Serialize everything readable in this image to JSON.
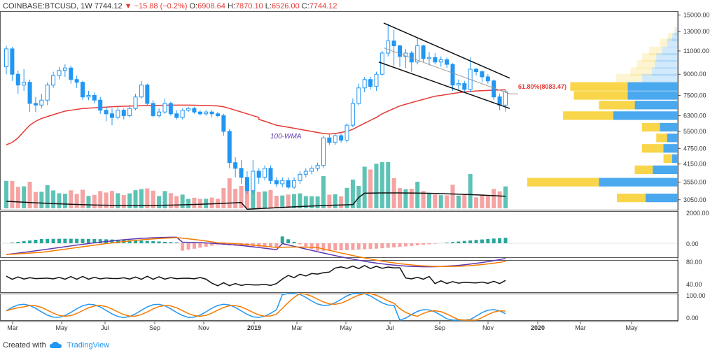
{
  "header": {
    "symbol": "COINBASE:BTCUSD, 1W",
    "last": "7744.12",
    "change": "▼ −15.88 (−0.2%)",
    "o_label": "O:",
    "o_val": "6908.64",
    "h_label": "H:",
    "h_val": "7870.10",
    "l_label": "L:",
    "l_val": "6526.00",
    "c_label": "C:",
    "c_val": "7744.12"
  },
  "footer": {
    "created": "Created with",
    "brand": "TradingView"
  },
  "colors": {
    "up": "#2196f3",
    "down": "#2196f3",
    "wma": "#e53935",
    "fib": "#e53935",
    "vol_up": "#5cc3b5",
    "vol_down": "#f5a3a3",
    "vp_yellow": "#f9d54a",
    "vp_blue": "#4aa8ef"
  },
  "chart_data": {
    "type": "candlestick",
    "title": "COINBASE:BTCUSD, 1W",
    "price_axis_ticks": [
      "15000.00",
      "13000.00",
      "11000.00",
      "9000.00",
      "7500.00",
      "6300.00",
      "5500.00",
      "4750.00",
      "4150.00",
      "3550.00",
      "3050.00"
    ],
    "x_axis_ticks": [
      "Mar",
      "May",
      "Jul",
      "Sep",
      "Nov",
      "2019",
      "Mar",
      "May",
      "Jul",
      "Sep",
      "Nov",
      "2020",
      "Mar",
      "May"
    ],
    "annotations": {
      "wma_label": "100-WMA",
      "fib_label": "61.80%(8083.47)"
    },
    "candles": [
      {
        "o": 9600,
        "c": 11200,
        "h": 11500,
        "l": 9000
      },
      {
        "o": 11200,
        "c": 9000,
        "h": 11400,
        "l": 8500
      },
      {
        "o": 9000,
        "c": 8200,
        "h": 9300,
        "l": 7600
      },
      {
        "o": 8200,
        "c": 8400,
        "h": 9400,
        "l": 7800
      },
      {
        "o": 8400,
        "c": 7000,
        "h": 8600,
        "l": 6500
      },
      {
        "o": 7000,
        "c": 6900,
        "h": 7400,
        "l": 6500
      },
      {
        "o": 6900,
        "c": 7200,
        "h": 7600,
        "l": 6700
      },
      {
        "o": 7200,
        "c": 8200,
        "h": 8400,
        "l": 6900
      },
      {
        "o": 8200,
        "c": 8900,
        "h": 9200,
        "l": 8000
      },
      {
        "o": 8900,
        "c": 9300,
        "h": 9600,
        "l": 8600
      },
      {
        "o": 9300,
        "c": 9500,
        "h": 9800,
        "l": 8800
      },
      {
        "o": 9500,
        "c": 8600,
        "h": 9700,
        "l": 8300
      },
      {
        "o": 8600,
        "c": 8400,
        "h": 8900,
        "l": 8000
      },
      {
        "o": 8400,
        "c": 7400,
        "h": 8500,
        "l": 7200
      },
      {
        "o": 7400,
        "c": 7500,
        "h": 7800,
        "l": 7200
      },
      {
        "o": 7500,
        "c": 7200,
        "h": 7700,
        "l": 7000
      },
      {
        "o": 7200,
        "c": 6600,
        "h": 7400,
        "l": 6400
      },
      {
        "o": 6600,
        "c": 6400,
        "h": 6800,
        "l": 6000
      },
      {
        "o": 6400,
        "c": 6200,
        "h": 6700,
        "l": 5800
      },
      {
        "o": 6200,
        "c": 6600,
        "h": 6800,
        "l": 6100
      },
      {
        "o": 6600,
        "c": 6300,
        "h": 6700,
        "l": 6100
      },
      {
        "o": 6300,
        "c": 6700,
        "h": 6900,
        "l": 6200
      },
      {
        "o": 6700,
        "c": 7400,
        "h": 7600,
        "l": 6600
      },
      {
        "o": 7400,
        "c": 8200,
        "h": 8500,
        "l": 7300
      },
      {
        "o": 8200,
        "c": 7000,
        "h": 8300,
        "l": 6900
      },
      {
        "o": 7000,
        "c": 6300,
        "h": 7200,
        "l": 6200
      },
      {
        "o": 6300,
        "c": 6500,
        "h": 6700,
        "l": 6200
      },
      {
        "o": 6500,
        "c": 7000,
        "h": 7300,
        "l": 6400
      },
      {
        "o": 7000,
        "c": 6400,
        "h": 7100,
        "l": 6300
      },
      {
        "o": 6400,
        "c": 6200,
        "h": 6600,
        "l": 6100
      },
      {
        "o": 6200,
        "c": 6600,
        "h": 6700,
        "l": 6100
      },
      {
        "o": 6600,
        "c": 6700,
        "h": 6800,
        "l": 6500
      },
      {
        "o": 6700,
        "c": 6500,
        "h": 6800,
        "l": 6400
      },
      {
        "o": 6500,
        "c": 6400,
        "h": 6600,
        "l": 6300
      },
      {
        "o": 6400,
        "c": 6500,
        "h": 6600,
        "l": 6300
      },
      {
        "o": 6500,
        "c": 6400,
        "h": 6600,
        "l": 6200
      },
      {
        "o": 6400,
        "c": 6300,
        "h": 6500,
        "l": 6200
      },
      {
        "o": 6300,
        "c": 5500,
        "h": 6400,
        "l": 5300
      },
      {
        "o": 5500,
        "c": 4200,
        "h": 5600,
        "l": 4000
      },
      {
        "o": 4200,
        "c": 4000,
        "h": 4400,
        "l": 3700
      },
      {
        "o": 4000,
        "c": 3700,
        "h": 4300,
        "l": 3500
      },
      {
        "o": 3700,
        "c": 3300,
        "h": 3900,
        "l": 3200
      },
      {
        "o": 3300,
        "c": 3900,
        "h": 4300,
        "l": 3200
      },
      {
        "o": 3900,
        "c": 3700,
        "h": 4000,
        "l": 3500
      },
      {
        "o": 3700,
        "c": 4000,
        "h": 4100,
        "l": 3600
      },
      {
        "o": 4000,
        "c": 3600,
        "h": 4100,
        "l": 3500
      },
      {
        "o": 3600,
        "c": 3500,
        "h": 3700,
        "l": 3400
      },
      {
        "o": 3500,
        "c": 3600,
        "h": 3700,
        "l": 3400
      },
      {
        "o": 3600,
        "c": 3400,
        "h": 3700,
        "l": 3350
      },
      {
        "o": 3400,
        "c": 3600,
        "h": 3700,
        "l": 3350
      },
      {
        "o": 3600,
        "c": 3800,
        "h": 3900,
        "l": 3500
      },
      {
        "o": 3800,
        "c": 3900,
        "h": 4000,
        "l": 3700
      },
      {
        "o": 3900,
        "c": 4000,
        "h": 4100,
        "l": 3800
      },
      {
        "o": 4000,
        "c": 4100,
        "h": 4200,
        "l": 3900
      },
      {
        "o": 4100,
        "c": 5200,
        "h": 5300,
        "l": 4000
      },
      {
        "o": 5200,
        "c": 5000,
        "h": 5400,
        "l": 4900
      },
      {
        "o": 5000,
        "c": 5300,
        "h": 5400,
        "l": 4900
      },
      {
        "o": 5300,
        "c": 5100,
        "h": 5400,
        "l": 5000
      },
      {
        "o": 5100,
        "c": 5800,
        "h": 5900,
        "l": 5000
      },
      {
        "o": 5800,
        "c": 7000,
        "h": 7300,
        "l": 5700
      },
      {
        "o": 7000,
        "c": 8000,
        "h": 8300,
        "l": 6900
      },
      {
        "o": 8000,
        "c": 8600,
        "h": 8800,
        "l": 7700
      },
      {
        "o": 8600,
        "c": 8100,
        "h": 8800,
        "l": 7900
      },
      {
        "o": 8100,
        "c": 9000,
        "h": 9200,
        "l": 7800
      },
      {
        "o": 9000,
        "c": 10800,
        "h": 11000,
        "l": 8900
      },
      {
        "o": 10800,
        "c": 12000,
        "h": 13900,
        "l": 10500
      },
      {
        "o": 12000,
        "c": 11500,
        "h": 13200,
        "l": 9700
      },
      {
        "o": 11500,
        "c": 10500,
        "h": 11600,
        "l": 9600
      },
      {
        "o": 10500,
        "c": 10800,
        "h": 11200,
        "l": 9500
      },
      {
        "o": 10800,
        "c": 10000,
        "h": 11000,
        "l": 9200
      },
      {
        "o": 10000,
        "c": 11500,
        "h": 12300,
        "l": 9800
      },
      {
        "o": 11500,
        "c": 10300,
        "h": 11600,
        "l": 10000
      },
      {
        "o": 10300,
        "c": 10400,
        "h": 10900,
        "l": 9700
      },
      {
        "o": 10400,
        "c": 10000,
        "h": 10800,
        "l": 9800
      },
      {
        "o": 10000,
        "c": 10200,
        "h": 10500,
        "l": 9600
      },
      {
        "o": 10200,
        "c": 9800,
        "h": 10400,
        "l": 9500
      },
      {
        "o": 9800,
        "c": 8200,
        "h": 9900,
        "l": 7800
      },
      {
        "o": 8200,
        "c": 8300,
        "h": 8600,
        "l": 7900
      },
      {
        "o": 8300,
        "c": 7900,
        "h": 8500,
        "l": 7700
      },
      {
        "o": 7900,
        "c": 9400,
        "h": 10400,
        "l": 7700
      },
      {
        "o": 9400,
        "c": 9200,
        "h": 9500,
        "l": 8900
      },
      {
        "o": 9200,
        "c": 8800,
        "h": 9300,
        "l": 8400
      },
      {
        "o": 8800,
        "c": 8500,
        "h": 9000,
        "l": 8300
      },
      {
        "o": 8500,
        "c": 7400,
        "h": 8600,
        "l": 7200
      },
      {
        "o": 7400,
        "c": 6900,
        "h": 7600,
        "l": 6600
      },
      {
        "o": 6900,
        "c": 7744,
        "h": 7870,
        "l": 6526
      }
    ],
    "volume_profile": [
      {
        "price": 13000,
        "up": 2,
        "down": 3
      },
      {
        "price": 12400,
        "up": 6,
        "down": 8
      },
      {
        "price": 11800,
        "up": 10,
        "down": 15
      },
      {
        "price": 11000,
        "up": 18,
        "down": 22
      },
      {
        "price": 10400,
        "up": 20,
        "down": 30
      },
      {
        "price": 9800,
        "up": 25,
        "down": 32
      },
      {
        "price": 9200,
        "up": 30,
        "down": 36
      },
      {
        "price": 8700,
        "up": 36,
        "down": 50
      },
      {
        "price": 8100,
        "up": 80,
        "down": 70
      },
      {
        "price": 7500,
        "up": 75,
        "down": 70
      },
      {
        "price": 6900,
        "up": 50,
        "down": 60
      },
      {
        "price": 6300,
        "up": 70,
        "down": 90
      },
      {
        "price": 5700,
        "up": 25,
        "down": 25
      },
      {
        "price": 5200,
        "up": 15,
        "down": 15
      },
      {
        "price": 4750,
        "up": 30,
        "down": 20
      },
      {
        "price": 4350,
        "up": 12,
        "down": 8
      },
      {
        "price": 3950,
        "up": 25,
        "down": 35
      },
      {
        "price": 3550,
        "up": 100,
        "down": 110
      },
      {
        "price": 3100,
        "up": 40,
        "down": 45
      }
    ]
  }
}
